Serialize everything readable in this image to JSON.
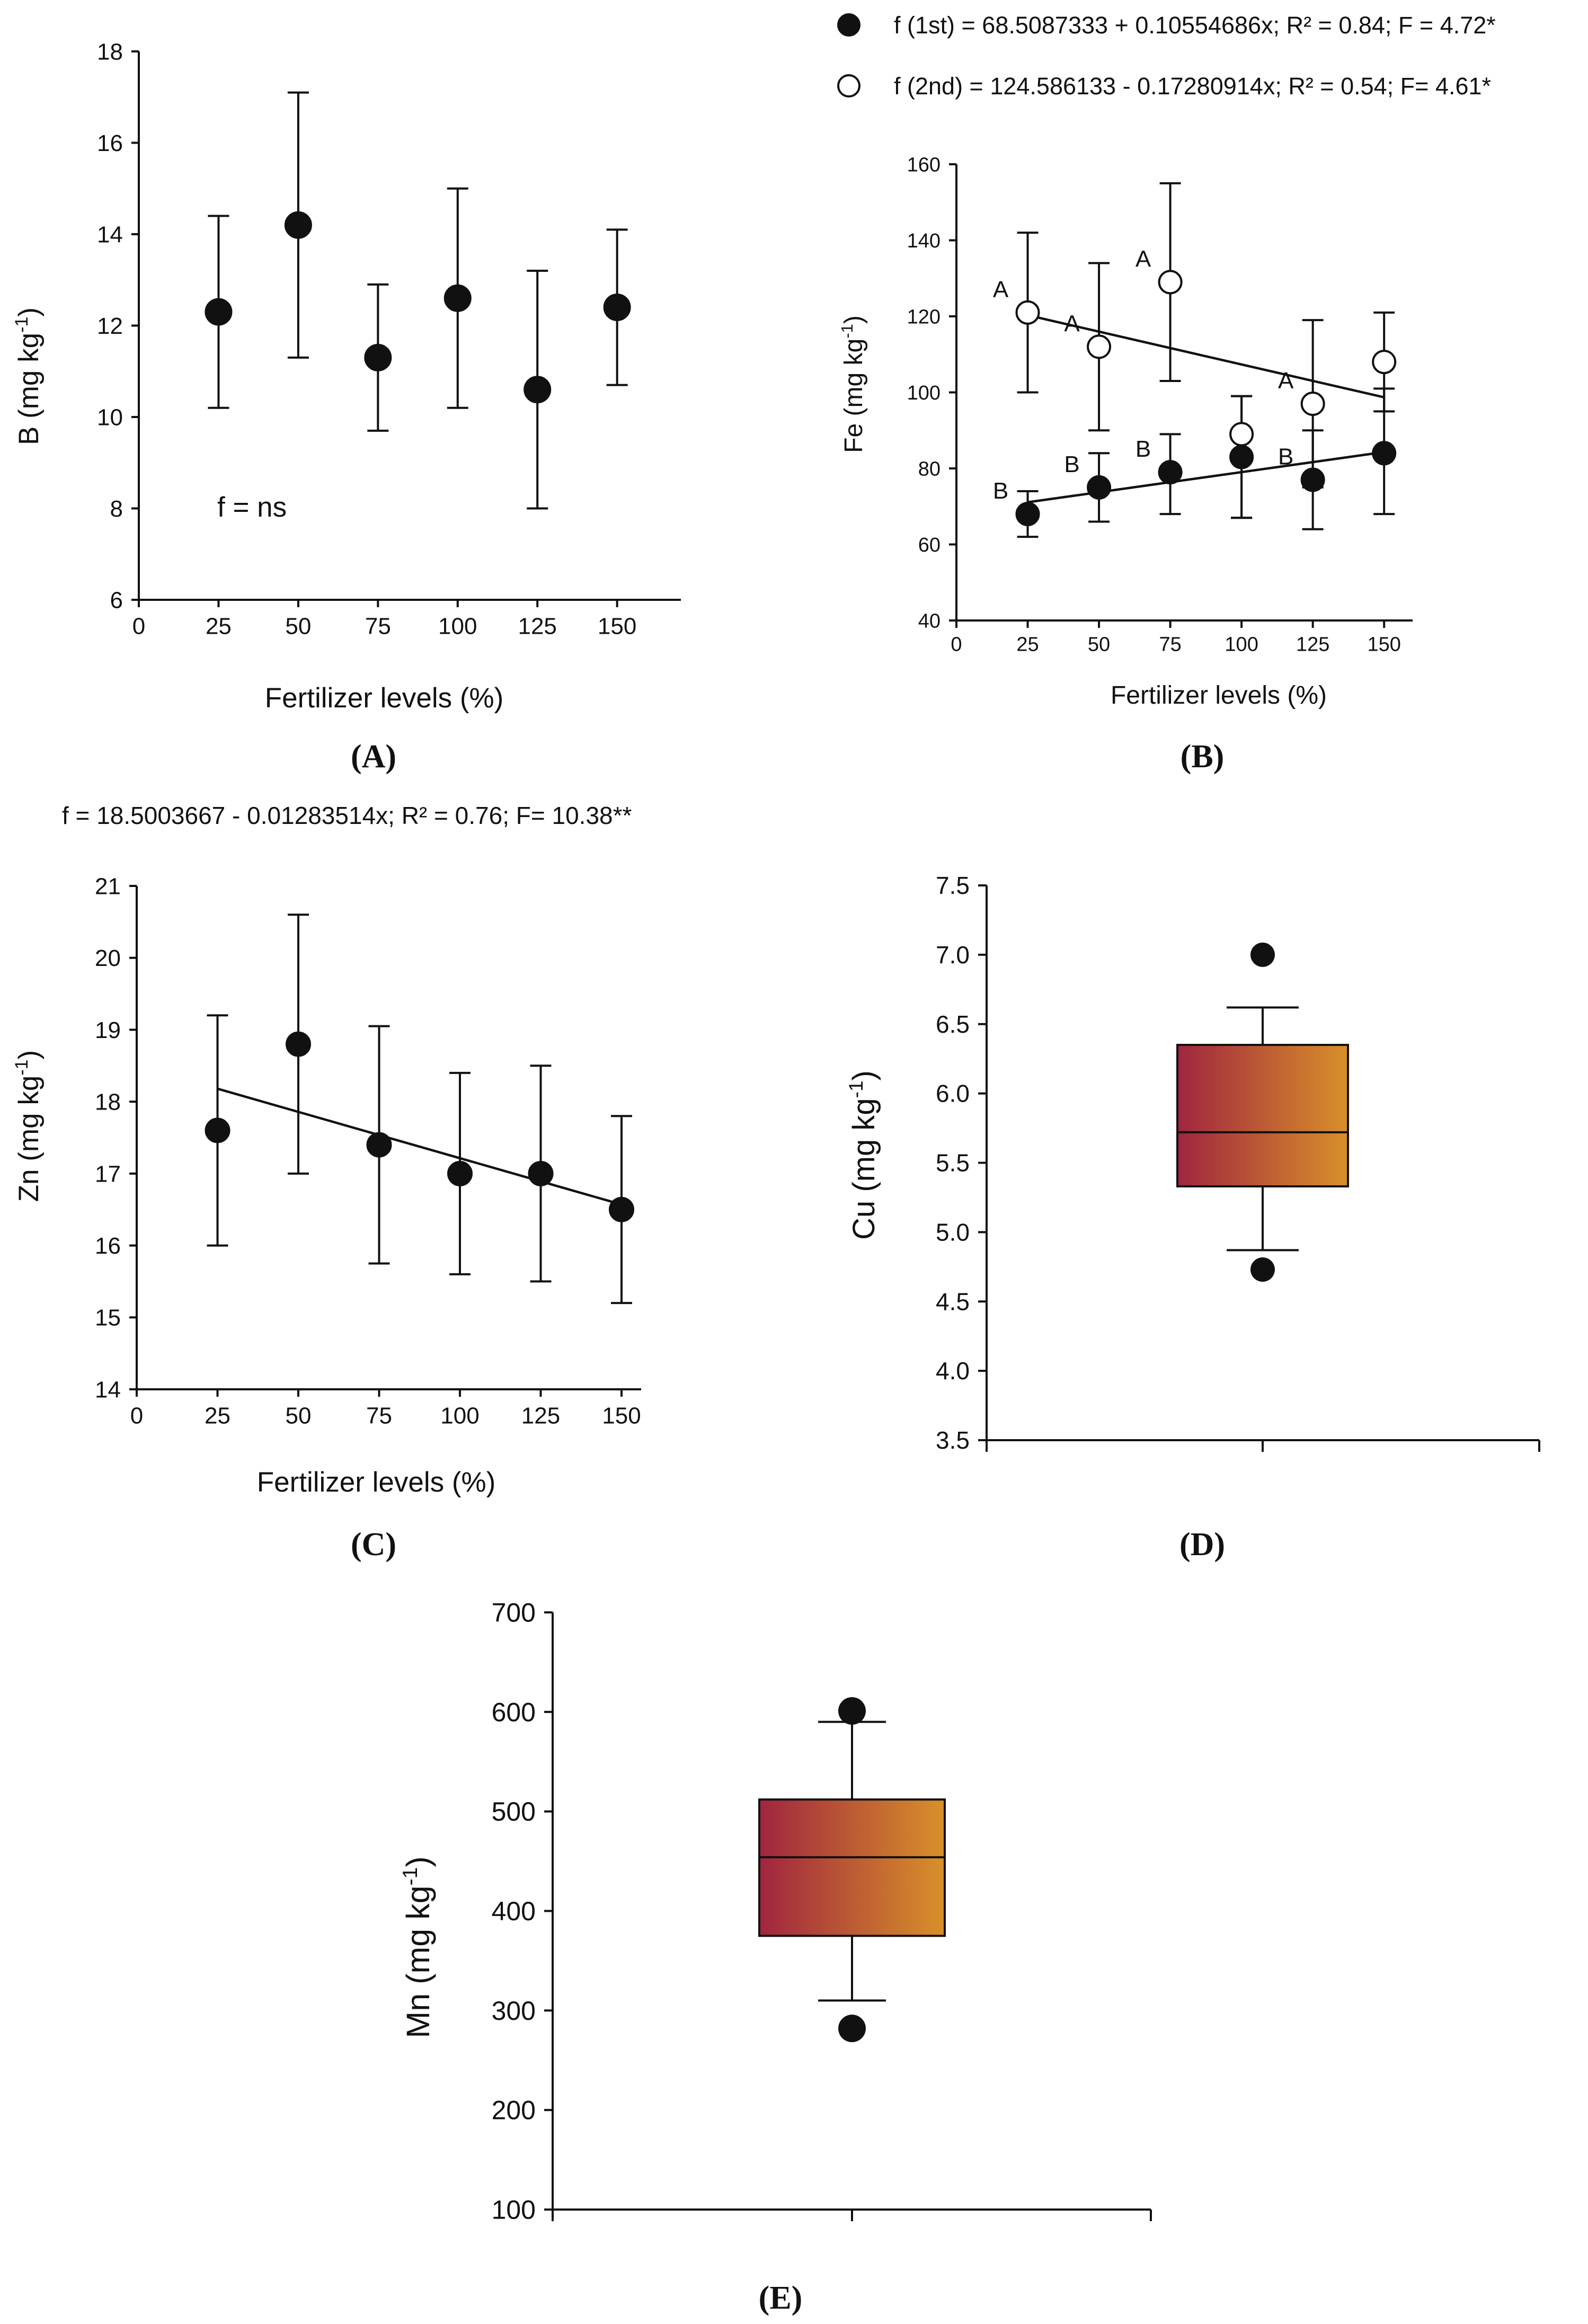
{
  "colors": {
    "box_left": "#a0253f",
    "box_right": "#d8902a",
    "ink": "#111111",
    "open_marker": "#ffffff"
  },
  "chart_data": [
    {
      "panel": "(A)",
      "type": "scatter",
      "xlabel": "Fertilizer levels (%)",
      "ylabel": "B (mg kg",
      "ylabel_sup": "-1",
      "ylabel_close": ")",
      "xlim": [
        0,
        170
      ],
      "ylim": [
        6,
        18
      ],
      "xticks": [
        0,
        25,
        50,
        75,
        100,
        125,
        150
      ],
      "yticks": [
        6,
        8,
        10,
        12,
        14,
        16,
        18
      ],
      "annotation": "f = ns",
      "series": [
        {
          "name": "B",
          "marker": "filled",
          "x": [
            25,
            50,
            75,
            100,
            125,
            150
          ],
          "y": [
            12.3,
            14.2,
            11.3,
            12.6,
            10.6,
            12.4
          ],
          "err_low": [
            10.2,
            11.3,
            9.7,
            10.2,
            8.0,
            10.7
          ],
          "err_high": [
            14.4,
            17.1,
            12.9,
            15.0,
            13.2,
            14.1
          ]
        }
      ]
    },
    {
      "panel": "(B)",
      "type": "scatter",
      "xlabel": "Fertilizer levels (%)",
      "ylabel": "Fe (mg kg",
      "ylabel_sup": "-1",
      "ylabel_close": ")",
      "xlim": [
        0,
        160
      ],
      "ylim": [
        40,
        160
      ],
      "xticks": [
        0,
        25,
        50,
        75,
        100,
        125,
        150
      ],
      "yticks": [
        40,
        60,
        80,
        100,
        120,
        140,
        160
      ],
      "legend": [
        {
          "marker": "filled",
          "label": "f (1st) = 68.5087333 + 0.10554686x; R² = 0.84; F = 4.72*"
        },
        {
          "marker": "open",
          "label": "f (2nd) = 124.586133 - 0.17280914x; R² = 0.54; F= 4.61*"
        }
      ],
      "series": [
        {
          "name": "1st",
          "marker": "filled",
          "x": [
            25,
            50,
            75,
            100,
            125,
            150
          ],
          "y": [
            68,
            75,
            79,
            83,
            77,
            84
          ],
          "err_low": [
            62,
            66,
            68,
            67,
            64,
            68
          ],
          "err_high": [
            74,
            84,
            89,
            99,
            90,
            101
          ],
          "letters": [
            "B",
            "B",
            "B",
            "",
            "B",
            ""
          ],
          "fit": {
            "x": [
              25,
              150
            ],
            "y": [
              71.1,
              84.3
            ]
          }
        },
        {
          "name": "2nd",
          "marker": "open",
          "x": [
            25,
            50,
            75,
            100,
            125,
            150
          ],
          "y": [
            121,
            112,
            129,
            89,
            97,
            108
          ],
          "err_low": [
            100,
            90,
            103,
            67,
            75,
            95
          ],
          "err_high": [
            142,
            134,
            155,
            99,
            119,
            121
          ],
          "letters": [
            "A",
            "A",
            "A",
            "",
            "A",
            ""
          ],
          "fit": {
            "x": [
              25,
              150
            ],
            "y": [
              120.3,
              98.7
            ]
          }
        }
      ]
    },
    {
      "panel": "(C)",
      "type": "scatter",
      "title": "f = 18.5003667 - 0.01283514x; R² = 0.76; F= 10.38**",
      "xlabel": "Fertilizer levels (%)",
      "ylabel": "Zn (mg kg",
      "ylabel_sup": "-1",
      "ylabel_close": ")",
      "xlim": [
        0,
        160
      ],
      "ylim": [
        14,
        21
      ],
      "xticks": [
        0,
        25,
        50,
        75,
        100,
        125,
        150
      ],
      "yticks": [
        14,
        15,
        16,
        17,
        18,
        19,
        20,
        21
      ],
      "series": [
        {
          "name": "Zn",
          "marker": "filled",
          "x": [
            25,
            50,
            75,
            100,
            125,
            150
          ],
          "y": [
            17.6,
            18.8,
            17.4,
            17.0,
            17.0,
            16.5
          ],
          "err_low": [
            16.0,
            17.0,
            15.75,
            15.6,
            15.5,
            15.2
          ],
          "err_high": [
            19.2,
            20.6,
            19.05,
            18.4,
            18.5,
            17.8
          ],
          "fit": {
            "x": [
              25,
              150
            ],
            "y": [
              18.18,
              16.57
            ]
          }
        }
      ]
    },
    {
      "panel": "(D)",
      "type": "box",
      "ylabel": "Cu (mg kg",
      "ylabel_sup": "-1",
      "ylabel_close": ")",
      "ylim": [
        3.5,
        7.5
      ],
      "yticks": [
        "3.5",
        "4.0",
        "4.5",
        "5.0",
        "5.5",
        "6.0",
        "6.5",
        "7.0",
        "7.5"
      ],
      "box": {
        "whisker_low": 4.87,
        "q1": 5.33,
        "median": 5.72,
        "q3": 6.35,
        "whisker_high": 6.62,
        "outliers": [
          4.73,
          7.0
        ]
      }
    },
    {
      "panel": "(E)",
      "type": "box",
      "ylabel": "Mn (mg kg",
      "ylabel_sup": "-1",
      "ylabel_close": ")",
      "ylim": [
        100,
        700
      ],
      "yticks": [
        "100",
        "200",
        "300",
        "400",
        "500",
        "600",
        "700"
      ],
      "box": {
        "whisker_low": 310,
        "q1": 375,
        "median": 454,
        "q3": 512,
        "whisker_high": 590,
        "outliers": [
          282,
          601
        ]
      }
    }
  ]
}
